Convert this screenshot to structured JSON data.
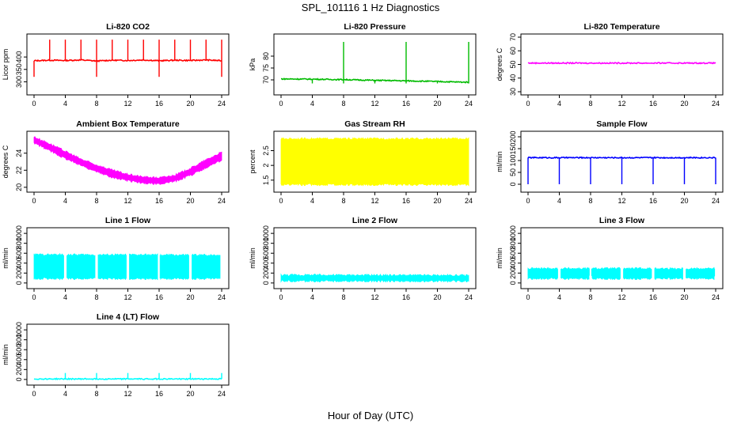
{
  "title": "SPL_101116  1 Hz Diagnostics",
  "x_axis_label": "Hour of Day (UTC)",
  "chart_data": [
    {
      "id": "co2",
      "type": "line",
      "title": "Li-820 CO2",
      "ylabel": "Licor ppm",
      "color": "#ff0000",
      "xlim": [
        0,
        24
      ],
      "xticks": [
        0,
        4,
        8,
        12,
        16,
        20,
        24
      ],
      "ylim": [
        260,
        480
      ],
      "yticks": [
        300,
        350,
        400
      ],
      "series": [
        {
          "x": [
            0,
            2,
            4,
            6,
            8,
            10,
            12,
            14,
            16,
            18,
            20,
            22,
            24
          ],
          "y": [
            385,
            387,
            386,
            388,
            384,
            387,
            386,
            388,
            385,
            387,
            386,
            388,
            385
          ]
        }
      ],
      "spikes_high": [
        2,
        4,
        6,
        8,
        10,
        12,
        14,
        16,
        18,
        20,
        22,
        24
      ],
      "spikes_high_value": 470,
      "spikes_low": [
        0,
        8,
        16,
        24
      ],
      "spikes_low_value": 320
    },
    {
      "id": "pressure",
      "type": "line",
      "title": "Li-820 Pressure",
      "ylabel": "kPa",
      "color": "#00bb00",
      "xlim": [
        0,
        24
      ],
      "xticks": [
        0,
        4,
        8,
        12,
        16,
        20,
        24
      ],
      "ylim": [
        65,
        88
      ],
      "yticks": [
        70,
        75,
        80
      ],
      "series": [
        {
          "x": [
            0,
            4,
            8,
            12,
            16,
            20,
            24
          ],
          "y": [
            70.4,
            70.3,
            70.1,
            69.8,
            69.6,
            69.3,
            69.0
          ]
        }
      ],
      "spikes_high": [
        8,
        16,
        24
      ],
      "spikes_high_value": 86,
      "spikes_low": [
        4,
        8,
        12,
        16,
        20,
        24
      ],
      "spikes_low_value": 68.5
    },
    {
      "id": "temperature",
      "type": "line",
      "title": "Li-820 Temperature",
      "ylabel": "degrees C",
      "color": "#ff00ff",
      "xlim": [
        0,
        24
      ],
      "xticks": [
        0,
        4,
        8,
        12,
        16,
        20,
        24
      ],
      "ylim": [
        30,
        70
      ],
      "yticks": [
        30,
        40,
        50,
        60,
        70
      ],
      "series": [
        {
          "x": [
            0,
            24
          ],
          "y": [
            51,
            51
          ]
        }
      ]
    },
    {
      "id": "ambient",
      "type": "area",
      "title": "Ambient Box Temperature",
      "ylabel": "degrees C",
      "color": "#ff00ff",
      "xlim": [
        0,
        24
      ],
      "xticks": [
        0,
        4,
        8,
        12,
        16,
        20,
        24
      ],
      "ylim": [
        19.8,
        26.2
      ],
      "yticks": [
        20,
        22,
        24
      ],
      "series": [
        {
          "name": "upper",
          "x": [
            0,
            2,
            4,
            6,
            8,
            10,
            12,
            14,
            16,
            18,
            20,
            22,
            24
          ],
          "y": [
            25.9,
            25.1,
            24.2,
            23.3,
            22.6,
            22.0,
            21.5,
            21.2,
            21.1,
            21.4,
            22.2,
            23.2,
            24.1
          ]
        },
        {
          "name": "lower",
          "x": [
            0,
            2,
            4,
            6,
            8,
            10,
            12,
            14,
            16,
            18,
            20,
            22,
            24
          ],
          "y": [
            25.2,
            24.3,
            23.4,
            22.6,
            21.8,
            21.2,
            20.8,
            20.5,
            20.4,
            20.7,
            21.4,
            22.3,
            23.2
          ]
        }
      ]
    },
    {
      "id": "rh",
      "type": "area",
      "title": "Gas Stream RH",
      "ylabel": "percent",
      "color": "#ffff00",
      "xlim": [
        0,
        24
      ],
      "xticks": [
        0,
        4,
        8,
        12,
        16,
        20,
        24
      ],
      "ylim": [
        1.2,
        3.05
      ],
      "yticks": [
        1.5,
        2.0,
        2.5
      ],
      "series": [
        {
          "name": "upper",
          "x": [
            0,
            24
          ],
          "y": [
            2.9,
            2.9
          ]
        },
        {
          "name": "lower",
          "x": [
            0,
            24
          ],
          "y": [
            1.35,
            1.35
          ]
        }
      ]
    },
    {
      "id": "sample",
      "type": "line",
      "title": "Sample Flow",
      "ylabel": "ml/min",
      "color": "#0000ff",
      "xlim": [
        0,
        24
      ],
      "xticks": [
        0,
        4,
        8,
        12,
        16,
        20,
        24
      ],
      "ylim": [
        -20,
        210
      ],
      "yticks": [
        0,
        50,
        100,
        150,
        200
      ],
      "series": [
        {
          "x": [
            0,
            24
          ],
          "y": [
            112,
            112
          ]
        }
      ],
      "spikes_low": [
        0,
        4,
        8,
        12,
        16,
        20,
        24
      ],
      "spikes_low_value": 0
    },
    {
      "id": "line1",
      "type": "area",
      "title": "Line 1 Flow",
      "ylabel": "ml/min",
      "color": "#00ffff",
      "xlim": [
        0,
        24
      ],
      "xticks": [
        0,
        4,
        8,
        12,
        16,
        20,
        24
      ],
      "ylim": [
        -50,
        1050
      ],
      "yticks": [
        0,
        200,
        400,
        600,
        800,
        1000
      ],
      "series": [
        {
          "name": "upper",
          "x": [
            0,
            24
          ],
          "y": [
            570,
            560
          ]
        },
        {
          "name": "lower",
          "x": [
            0,
            24
          ],
          "y": [
            90,
            90
          ]
        }
      ],
      "gaps": [
        4,
        8,
        12,
        16,
        20,
        24
      ]
    },
    {
      "id": "line2",
      "type": "area",
      "title": "Line 2 Flow",
      "ylabel": "ml/min",
      "color": "#00ffff",
      "xlim": [
        0,
        24
      ],
      "xticks": [
        0,
        4,
        8,
        12,
        16,
        20,
        24
      ],
      "ylim": [
        -50,
        1050
      ],
      "yticks": [
        0,
        200,
        400,
        600,
        800,
        1000
      ],
      "series": [
        {
          "name": "upper",
          "x": [
            0,
            24
          ],
          "y": [
            160,
            150
          ]
        },
        {
          "name": "lower",
          "x": [
            0,
            24
          ],
          "y": [
            40,
            40
          ]
        }
      ],
      "gaps": []
    },
    {
      "id": "line3",
      "type": "area",
      "title": "Line 3 Flow",
      "ylabel": "ml/min",
      "color": "#00ffff",
      "xlim": [
        0,
        24
      ],
      "xticks": [
        0,
        4,
        8,
        12,
        16,
        20,
        24
      ],
      "ylim": [
        -50,
        1050
      ],
      "yticks": [
        0,
        200,
        400,
        600,
        800,
        1000
      ],
      "series": [
        {
          "name": "upper",
          "x": [
            0,
            24
          ],
          "y": [
            290,
            290
          ]
        },
        {
          "name": "lower",
          "x": [
            0,
            24
          ],
          "y": [
            90,
            90
          ]
        }
      ],
      "gaps": [
        4,
        8,
        12,
        16,
        20,
        24
      ]
    },
    {
      "id": "line4",
      "type": "line",
      "title": "Line 4 (LT) Flow",
      "ylabel": "ml/min",
      "color": "#00ffff",
      "xlim": [
        0,
        24
      ],
      "xticks": [
        0,
        4,
        8,
        12,
        16,
        20,
        24
      ],
      "ylim": [
        -50,
        1050
      ],
      "yticks": [
        0,
        200,
        400,
        600,
        800,
        1000
      ],
      "series": [
        {
          "x": [
            0,
            24
          ],
          "y": [
            10,
            10
          ]
        }
      ],
      "spikes_high": [
        4,
        8,
        12,
        16,
        20,
        24
      ],
      "spikes_high_value": 130
    }
  ]
}
